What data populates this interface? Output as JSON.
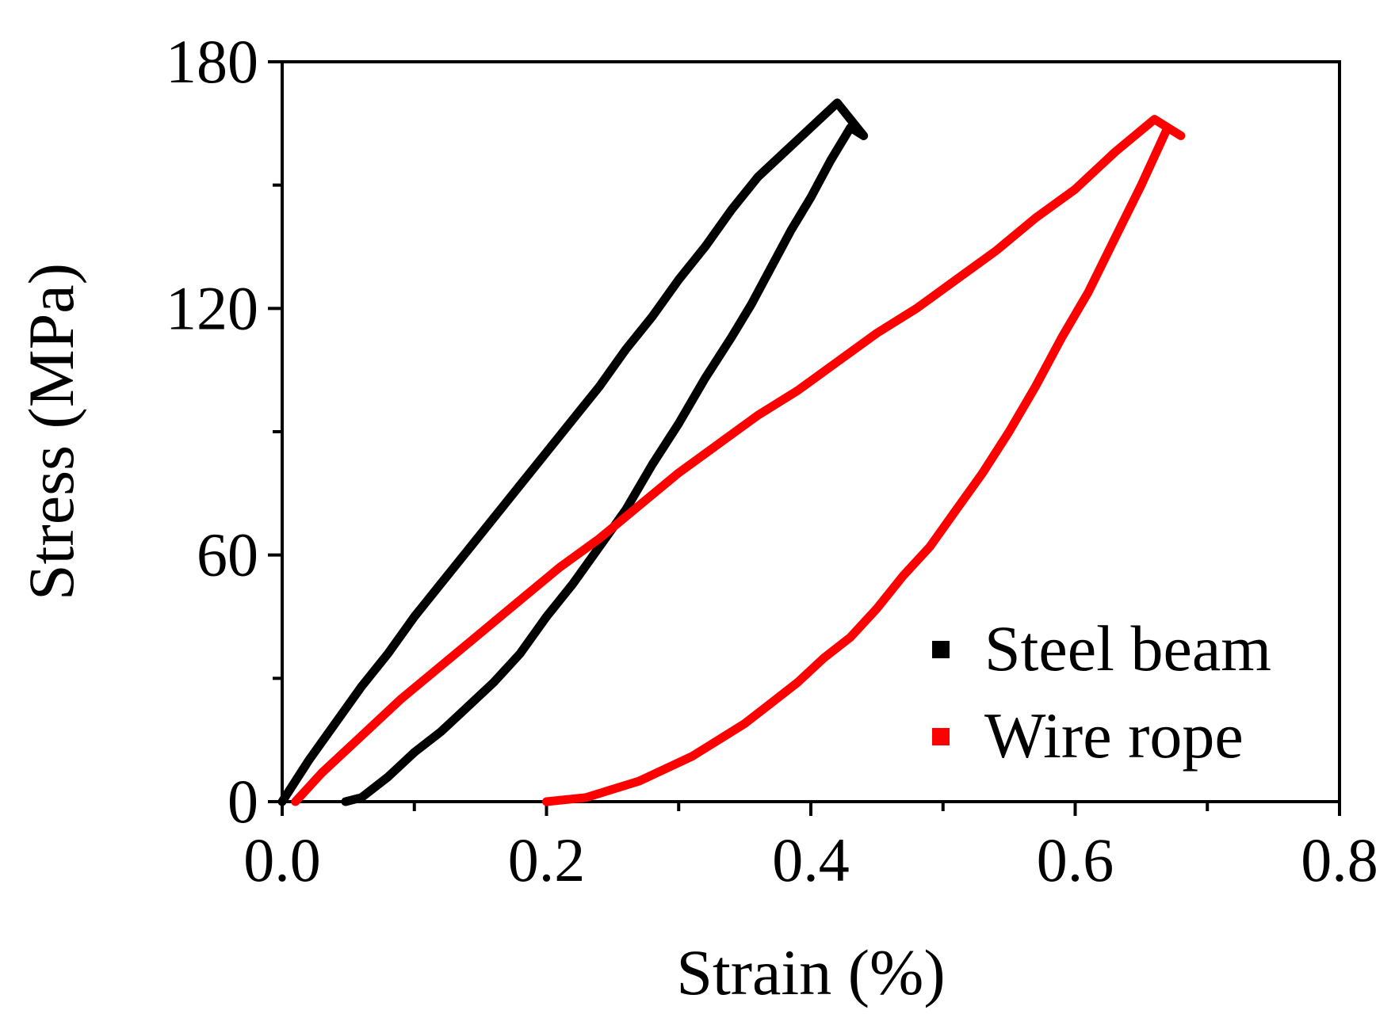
{
  "chart_data": {
    "type": "line",
    "title": "",
    "xlabel": "Strain (%)",
    "ylabel": "Stress (MPa)",
    "xlim": [
      0.0,
      0.8
    ],
    "ylim": [
      0,
      180
    ],
    "x_ticks": [
      0.0,
      0.2,
      0.4,
      0.6,
      0.8
    ],
    "x_tick_labels": [
      "0.0",
      "0.2",
      "0.4",
      "0.6",
      "0.8"
    ],
    "x_minor_ticks": [
      0.1,
      0.3,
      0.5,
      0.7
    ],
    "y_ticks": [
      0,
      60,
      120,
      180
    ],
    "y_tick_labels": [
      "0",
      "60",
      "120",
      "180"
    ],
    "y_minor_ticks": [
      30,
      90,
      150
    ],
    "grid": false,
    "legend_position": "bottom-right",
    "series": [
      {
        "name": "Steel beam",
        "color": "#000000",
        "points": [
          [
            0.0,
            0
          ],
          [
            0.02,
            10
          ],
          [
            0.04,
            19
          ],
          [
            0.06,
            28
          ],
          [
            0.08,
            36
          ],
          [
            0.1,
            45
          ],
          [
            0.12,
            53
          ],
          [
            0.14,
            61
          ],
          [
            0.16,
            69
          ],
          [
            0.18,
            77
          ],
          [
            0.2,
            85
          ],
          [
            0.22,
            93
          ],
          [
            0.24,
            101
          ],
          [
            0.26,
            110
          ],
          [
            0.28,
            118
          ],
          [
            0.3,
            127
          ],
          [
            0.32,
            135
          ],
          [
            0.34,
            144
          ],
          [
            0.36,
            152
          ],
          [
            0.38,
            158
          ],
          [
            0.4,
            164
          ],
          [
            0.42,
            170
          ],
          [
            0.44,
            162
          ],
          [
            0.43,
            164
          ],
          [
            0.415,
            156
          ],
          [
            0.4,
            147
          ],
          [
            0.385,
            139
          ],
          [
            0.37,
            130
          ],
          [
            0.355,
            121
          ],
          [
            0.34,
            113
          ],
          [
            0.32,
            103
          ],
          [
            0.3,
            92
          ],
          [
            0.28,
            82
          ],
          [
            0.26,
            71
          ],
          [
            0.24,
            62
          ],
          [
            0.22,
            53
          ],
          [
            0.2,
            45
          ],
          [
            0.18,
            36
          ],
          [
            0.16,
            29
          ],
          [
            0.14,
            23
          ],
          [
            0.12,
            17
          ],
          [
            0.1,
            12
          ],
          [
            0.08,
            6
          ],
          [
            0.06,
            1
          ],
          [
            0.048,
            0
          ]
        ]
      },
      {
        "name": "Wire rope",
        "color": "#ff0000",
        "points": [
          [
            0.01,
            0
          ],
          [
            0.03,
            7
          ],
          [
            0.06,
            16
          ],
          [
            0.09,
            25
          ],
          [
            0.12,
            33
          ],
          [
            0.15,
            41
          ],
          [
            0.18,
            49
          ],
          [
            0.21,
            57
          ],
          [
            0.24,
            64
          ],
          [
            0.27,
            72
          ],
          [
            0.3,
            80
          ],
          [
            0.33,
            87
          ],
          [
            0.36,
            94
          ],
          [
            0.39,
            100
          ],
          [
            0.42,
            107
          ],
          [
            0.45,
            114
          ],
          [
            0.48,
            120
          ],
          [
            0.51,
            127
          ],
          [
            0.54,
            134
          ],
          [
            0.57,
            142
          ],
          [
            0.6,
            149
          ],
          [
            0.63,
            158
          ],
          [
            0.66,
            166
          ],
          [
            0.68,
            162
          ],
          [
            0.67,
            164
          ],
          [
            0.65,
            150
          ],
          [
            0.63,
            137
          ],
          [
            0.61,
            124
          ],
          [
            0.59,
            113
          ],
          [
            0.57,
            101
          ],
          [
            0.55,
            90
          ],
          [
            0.53,
            80
          ],
          [
            0.51,
            71
          ],
          [
            0.49,
            62
          ],
          [
            0.47,
            55
          ],
          [
            0.45,
            47
          ],
          [
            0.43,
            40
          ],
          [
            0.41,
            35
          ],
          [
            0.39,
            29
          ],
          [
            0.37,
            24
          ],
          [
            0.35,
            19
          ],
          [
            0.33,
            15
          ],
          [
            0.31,
            11
          ],
          [
            0.29,
            8
          ],
          [
            0.27,
            5
          ],
          [
            0.25,
            3
          ],
          [
            0.23,
            1
          ],
          [
            0.2,
            0
          ]
        ]
      }
    ]
  }
}
